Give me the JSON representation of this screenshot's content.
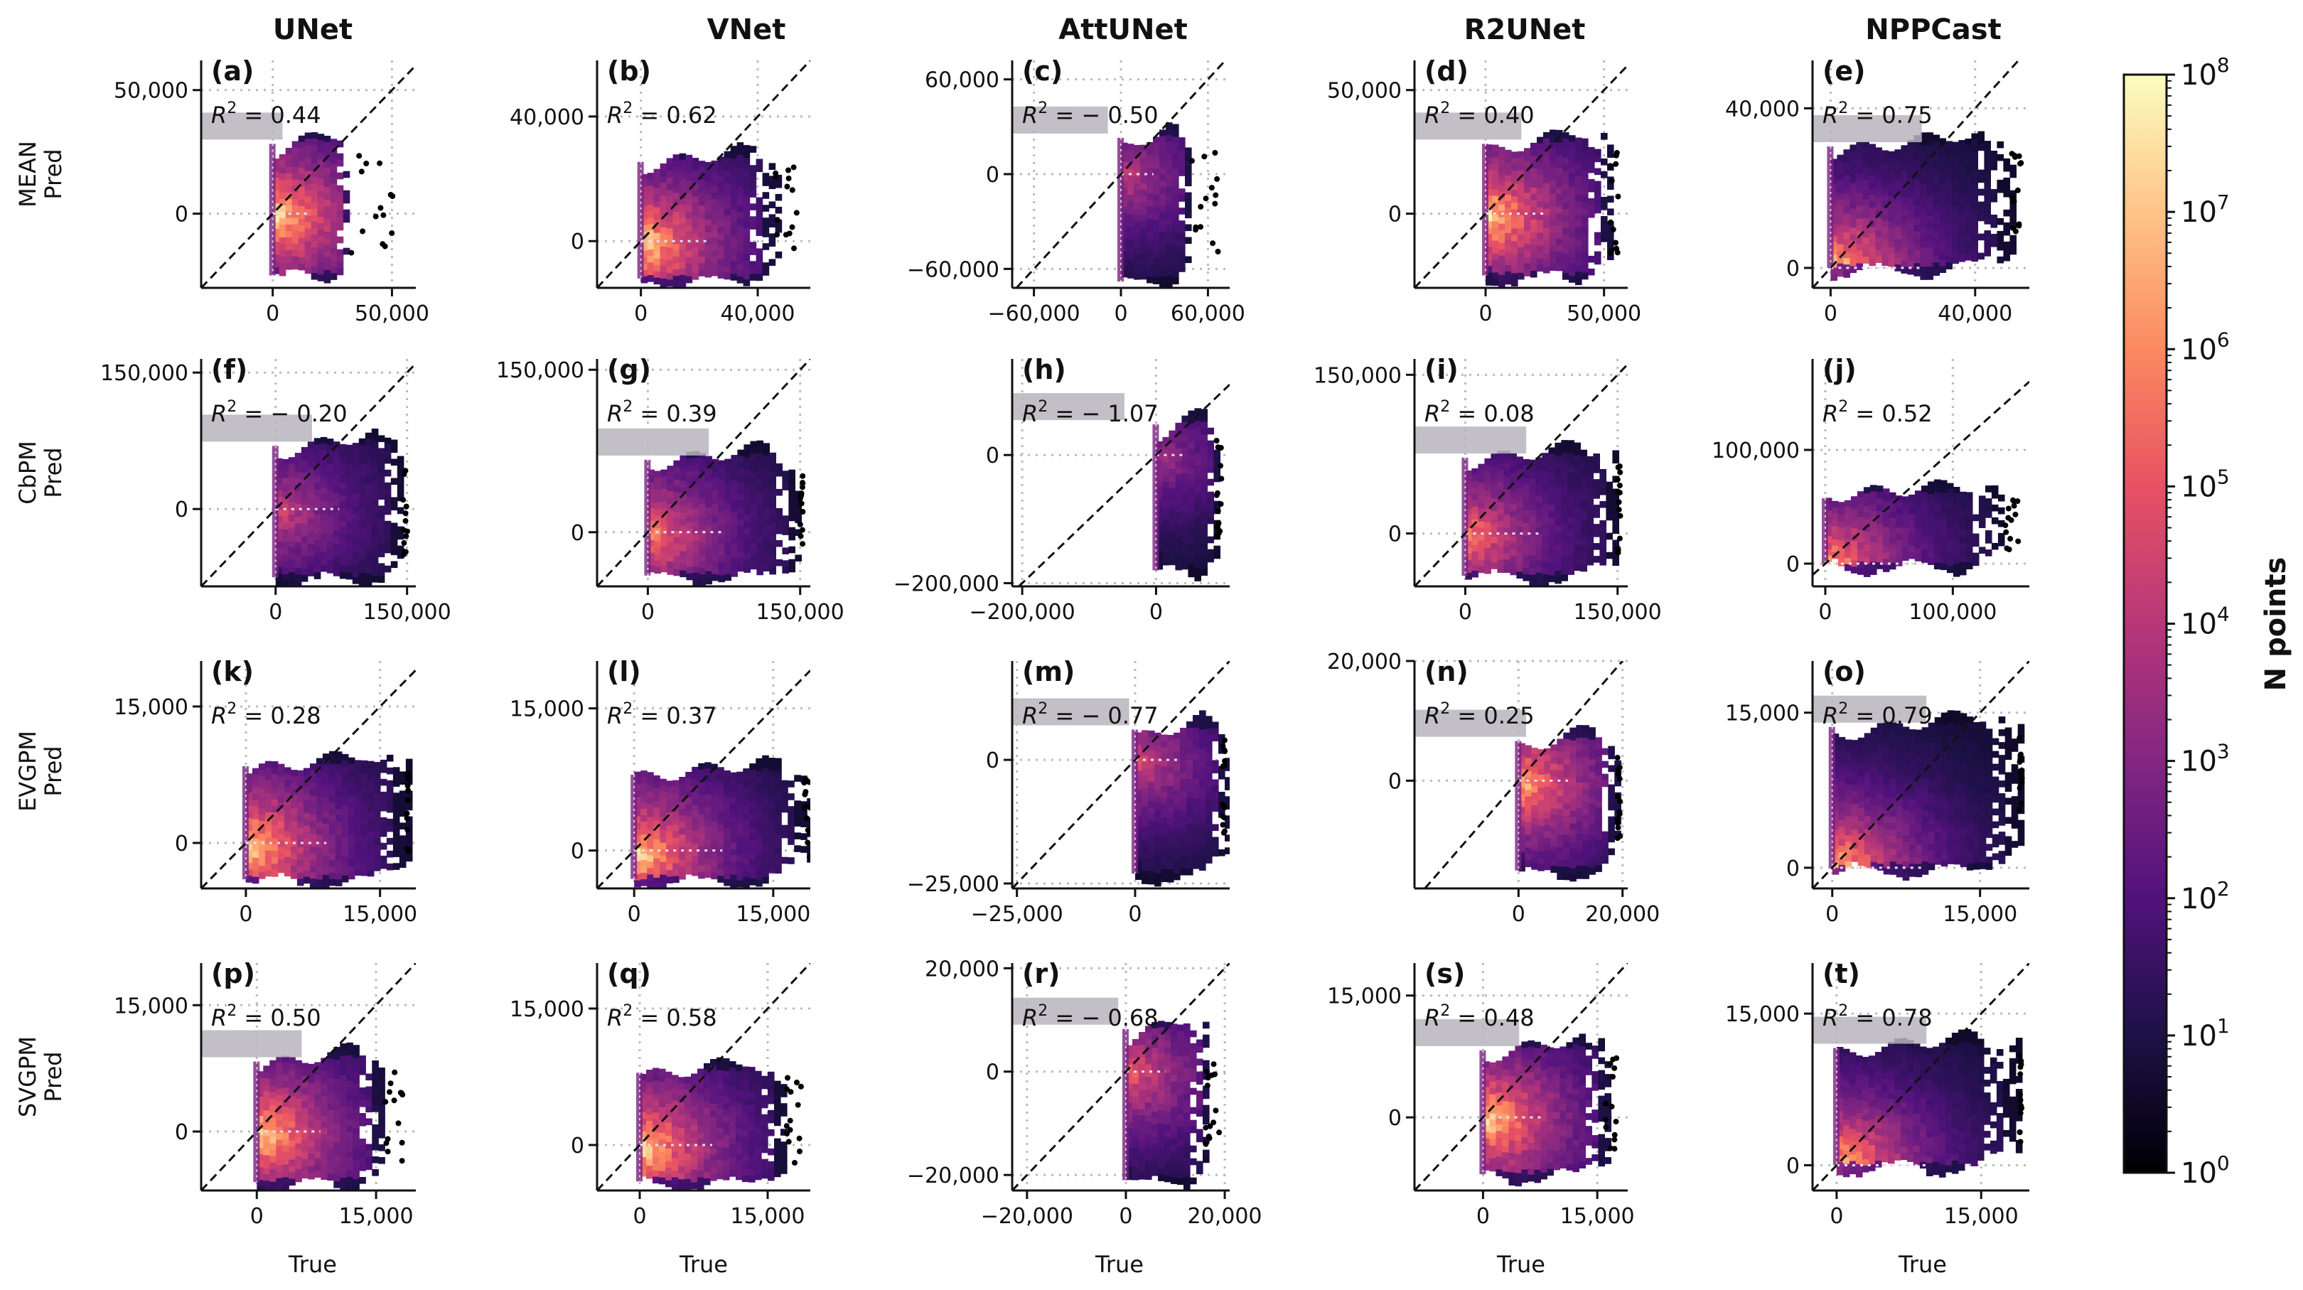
{
  "figure": {
    "columns": [
      "UNet",
      "VNet",
      "AttUNet",
      "R2UNet",
      "NPPCast"
    ],
    "rows": [
      {
        "line1": "MEAN",
        "line2": "Pred"
      },
      {
        "line1": "CbPM",
        "line2": "Pred"
      },
      {
        "line1": "EVGPM",
        "line2": "Pred"
      },
      {
        "line1": "SVGPM",
        "line2": "Pred"
      }
    ],
    "x_axis_title": "True",
    "colorbar": {
      "title": "N points",
      "tick_labels": [
        "10^0",
        "10^1",
        "10^2",
        "10^3",
        "10^4",
        "10^5",
        "10^6",
        "10^7",
        "10^8"
      ],
      "colormap": "magma",
      "stops": [
        "#000004",
        "#1d1147",
        "#51127c",
        "#832681",
        "#b73779",
        "#e75263",
        "#fc8961",
        "#fec488",
        "#fcfdbf"
      ]
    }
  },
  "chart_data": [
    {
      "type": "hexbin",
      "panel": "(a)",
      "model": "UNet",
      "variable": "MEAN",
      "r2": "0.44",
      "xlabel": "True",
      "ylabel": "MEAN Pred",
      "xlim": [
        -30000,
        60000
      ],
      "ylim": [
        -30000,
        62000
      ],
      "xticks": [
        0,
        50000
      ],
      "yticks": [
        0,
        50000
      ],
      "xtick_labels": [
        "0",
        "50,000"
      ],
      "ytick_labels": [
        "0",
        "50,000"
      ],
      "cloud": {
        "x": [
          0,
          32000
        ],
        "y": [
          -25000,
          34000
        ],
        "slope": 0.55,
        "hot": 1.0,
        "satcap": true
      }
    },
    {
      "type": "hexbin",
      "panel": "(b)",
      "model": "VNet",
      "variable": "MEAN",
      "r2": "0.62",
      "xlabel": "True",
      "ylabel": "MEAN Pred",
      "xlim": [
        -15000,
        58000
      ],
      "ylim": [
        -15000,
        58000
      ],
      "xticks": [
        0,
        40000
      ],
      "yticks": [
        0,
        40000
      ],
      "xtick_labels": [
        "0",
        "40,000"
      ],
      "ytick_labels": [
        "0",
        "40,000"
      ],
      "cloud": {
        "x": [
          0,
          46000
        ],
        "y": [
          -12000,
          30000
        ],
        "slope": 0.6,
        "hot": 1.0,
        "satcap": false
      }
    },
    {
      "type": "hexbin",
      "panel": "(c)",
      "model": "AttUNet",
      "variable": "MEAN",
      "r2": "-0.50",
      "xlabel": "True",
      "ylabel": "MEAN Pred",
      "xlim": [
        -75000,
        75000
      ],
      "ylim": [
        -72000,
        72000
      ],
      "xticks": [
        -60000,
        0,
        60000
      ],
      "yticks": [
        -60000,
        0,
        60000
      ],
      "xtick_labels": [
        "−60,000",
        "0",
        "60,000"
      ],
      "ytick_labels": [
        "−60,000",
        "0",
        "60,000"
      ],
      "cloud": {
        "x": [
          0,
          45000
        ],
        "y": [
          -68000,
          32000
        ],
        "slope": 0.25,
        "hot": 0.55,
        "satcap": true
      }
    },
    {
      "type": "hexbin",
      "panel": "(d)",
      "model": "R2UNet",
      "variable": "MEAN",
      "r2": "0.40",
      "xlabel": "True",
      "ylabel": "MEAN Pred",
      "xlim": [
        -30000,
        60000
      ],
      "ylim": [
        -30000,
        62000
      ],
      "xticks": [
        0,
        50000
      ],
      "yticks": [
        0,
        50000
      ],
      "xtick_labels": [
        "0",
        "50,000"
      ],
      "ytick_labels": [
        "0",
        "50,000"
      ],
      "cloud": {
        "x": [
          0,
          52000
        ],
        "y": [
          -25000,
          34000
        ],
        "slope": 0.55,
        "hot": 1.0,
        "satcap": true
      }
    },
    {
      "type": "hexbin",
      "panel": "(e)",
      "model": "NPPCast",
      "variable": "MEAN",
      "r2": "0.75",
      "xlabel": "True",
      "ylabel": "MEAN Pred",
      "xlim": [
        -5000,
        55000
      ],
      "ylim": [
        -5000,
        52000
      ],
      "xticks": [
        0,
        40000
      ],
      "yticks": [
        0,
        40000
      ],
      "xtick_labels": [
        "0",
        "40,000"
      ],
      "ytick_labels": [
        "0",
        "40,000"
      ],
      "cloud": {
        "x": [
          0,
          50000
        ],
        "y": [
          0,
          34000
        ],
        "slope": 0.7,
        "hot": 1.0,
        "satcap": true
      }
    },
    {
      "type": "hexbin",
      "panel": "(f)",
      "model": "UNet",
      "variable": "CbPM",
      "r2": "-0.20",
      "xlabel": "True",
      "ylabel": "CbPM Pred",
      "xlim": [
        -85000,
        160000
      ],
      "ylim": [
        -85000,
        165000
      ],
      "xticks": [
        0,
        150000
      ],
      "yticks": [
        0,
        150000
      ],
      "xtick_labels": [
        "0",
        "150,000"
      ],
      "ytick_labels": [
        "0",
        "150,000"
      ],
      "cloud": {
        "x": [
          0,
          145000
        ],
        "y": [
          -75000,
          85000
        ],
        "slope": 0.5,
        "hot": 0.6,
        "satcap": true
      }
    },
    {
      "type": "hexbin",
      "panel": "(g)",
      "model": "VNet",
      "variable": "CbPM",
      "r2": "0.39",
      "xlabel": "True",
      "ylabel": "CbPM Pred",
      "xlim": [
        -50000,
        160000
      ],
      "ylim": [
        -50000,
        160000
      ],
      "xticks": [
        0,
        150000
      ],
      "yticks": [
        0,
        150000
      ],
      "xtick_labels": [
        "0",
        "150,000"
      ],
      "ytick_labels": [
        "0",
        "150,000"
      ],
      "cloud": {
        "x": [
          0,
          150000
        ],
        "y": [
          -40000,
          80000
        ],
        "slope": 0.5,
        "hot": 0.8,
        "satcap": true
      }
    },
    {
      "type": "hexbin",
      "panel": "(h)",
      "model": "AttUNet",
      "variable": "CbPM",
      "r2": "-1.07",
      "xlabel": "True",
      "ylabel": "CbPM Pred",
      "xlim": [
        -215000,
        110000
      ],
      "ylim": [
        -205000,
        150000
      ],
      "xticks": [
        -200000,
        0
      ],
      "yticks": [
        -200000,
        0
      ],
      "xtick_labels": [
        "−200,000",
        "0"
      ],
      "ytick_labels": [
        "−200,000",
        "0"
      ],
      "cloud": {
        "x": [
          0,
          90000
        ],
        "y": [
          -180000,
          70000
        ],
        "slope": 0.3,
        "hot": 0.45,
        "satcap": true
      }
    },
    {
      "type": "hexbin",
      "panel": "(i)",
      "model": "R2UNet",
      "variable": "CbPM",
      "r2": "0.08",
      "xlabel": "True",
      "ylabel": "CbPM Pred",
      "xlim": [
        -50000,
        160000
      ],
      "ylim": [
        -50000,
        165000
      ],
      "xticks": [
        0,
        150000
      ],
      "yticks": [
        0,
        150000
      ],
      "xtick_labels": [
        "0",
        "150,000"
      ],
      "ytick_labels": [
        "0",
        "150,000"
      ],
      "cloud": {
        "x": [
          0,
          150000
        ],
        "y": [
          -40000,
          85000
        ],
        "slope": 0.5,
        "hot": 0.8,
        "satcap": true
      }
    },
    {
      "type": "hexbin",
      "panel": "(j)",
      "model": "NPPCast",
      "variable": "CbPM",
      "r2": "0.52",
      "xlabel": "True",
      "ylabel": "CbPM Pred",
      "xlim": [
        -10000,
        160000
      ],
      "ylim": [
        -20000,
        180000
      ],
      "xticks": [
        0,
        100000
      ],
      "yticks": [
        0,
        100000
      ],
      "xtick_labels": [
        "0",
        "100,000"
      ],
      "ytick_labels": [
        "0",
        "100,000"
      ],
      "cloud": {
        "x": [
          0,
          140000
        ],
        "y": [
          0,
          70000
        ],
        "slope": 0.5,
        "hot": 0.9,
        "satcap": false
      }
    },
    {
      "type": "hexbin",
      "panel": "(k)",
      "model": "UNet",
      "variable": "EVGPM",
      "r2": "0.28",
      "xlabel": "True",
      "ylabel": "EVGPM Pred",
      "xlim": [
        -5000,
        19000
      ],
      "ylim": [
        -5000,
        20000
      ],
      "xticks": [
        0,
        15000
      ],
      "yticks": [
        0,
        15000
      ],
      "xtick_labels": [
        "0",
        "15,000"
      ],
      "ytick_labels": [
        "0",
        "15,000"
      ],
      "cloud": {
        "x": [
          0,
          18000
        ],
        "y": [
          -4000,
          10000
        ],
        "slope": 0.45,
        "hot": 1.0,
        "satcap": false
      }
    },
    {
      "type": "hexbin",
      "panel": "(l)",
      "model": "VNet",
      "variable": "EVGPM",
      "r2": "0.37",
      "xlabel": "True",
      "ylabel": "EVGPM Pred",
      "xlim": [
        -4000,
        19000
      ],
      "ylim": [
        -4000,
        20000
      ],
      "xticks": [
        0,
        15000
      ],
      "yticks": [
        0,
        15000
      ],
      "xtick_labels": [
        "0",
        "15,000"
      ],
      "ytick_labels": [
        "0",
        "15,000"
      ],
      "cloud": {
        "x": [
          0,
          19000
        ],
        "y": [
          -3000,
          9500
        ],
        "slope": 0.45,
        "hot": 1.0,
        "satcap": false
      }
    },
    {
      "type": "hexbin",
      "panel": "(m)",
      "model": "AttUNet",
      "variable": "EVGPM",
      "r2": "-0.77",
      "xlabel": "True",
      "ylabel": "EVGPM Pred",
      "xlim": [
        -26000,
        20000
      ],
      "ylim": [
        -26000,
        20000
      ],
      "xticks": [
        -25000,
        0
      ],
      "yticks": [
        -25000,
        0
      ],
      "xtick_labels": [
        "−25,000",
        "0"
      ],
      "ytick_labels": [
        "−25,000",
        "0"
      ],
      "cloud": {
        "x": [
          0,
          19000
        ],
        "y": [
          -23000,
          9000
        ],
        "slope": 0.3,
        "hot": 0.6,
        "satcap": true
      }
    },
    {
      "type": "hexbin",
      "panel": "(n)",
      "model": "R2UNet",
      "variable": "EVGPM",
      "r2": "0.25",
      "xlabel": "True",
      "ylabel": "EVGPM Pred",
      "xlim": [
        -20000,
        21000
      ],
      "ylim": [
        -18000,
        20000
      ],
      "xticks": [
        0,
        20000
      ],
      "yticks": [
        0,
        20000
      ],
      "xtick_labels": [
        "0",
        "20,000"
      ],
      "ytick_labels": [
        "0",
        "20,000"
      ],
      "cloud": {
        "x": [
          0,
          19000
        ],
        "y": [
          -15000,
          9000
        ],
        "slope": 0.4,
        "hot": 0.9,
        "satcap": true
      }
    },
    {
      "type": "hexbin",
      "panel": "(o)",
      "model": "NPPCast",
      "variable": "EVGPM",
      "r2": "0.79",
      "xlabel": "True",
      "ylabel": "EVGPM Pred",
      "xlim": [
        -2000,
        20000
      ],
      "ylim": [
        -2000,
        20000
      ],
      "xticks": [
        0,
        15000
      ],
      "yticks": [
        0,
        15000
      ],
      "xtick_labels": [
        "0",
        "15,000"
      ],
      "ytick_labels": [
        "0",
        "15,000"
      ],
      "cloud": {
        "x": [
          0,
          19000
        ],
        "y": [
          0,
          15000
        ],
        "slope": 0.65,
        "hot": 1.0,
        "satcap": true
      }
    },
    {
      "type": "hexbin",
      "panel": "(p)",
      "model": "UNet",
      "variable": "SVGPM",
      "r2": "0.50",
      "xlabel": "True",
      "ylabel": "SVGPM Pred",
      "xlim": [
        -7000,
        20000
      ],
      "ylim": [
        -7000,
        20000
      ],
      "xticks": [
        0,
        15000
      ],
      "yticks": [
        0,
        15000
      ],
      "xtick_labels": [
        "0",
        "15,000"
      ],
      "ytick_labels": [
        "0",
        "15,000"
      ],
      "cloud": {
        "x": [
          0,
          16000
        ],
        "y": [
          -6000,
          10000
        ],
        "slope": 0.55,
        "hot": 1.0,
        "satcap": true
      }
    },
    {
      "type": "hexbin",
      "panel": "(q)",
      "model": "VNet",
      "variable": "SVGPM",
      "r2": "0.58",
      "xlabel": "True",
      "ylabel": "SVGPM Pred",
      "xlim": [
        -5000,
        20000
      ],
      "ylim": [
        -5000,
        20000
      ],
      "xticks": [
        0,
        15000
      ],
      "yticks": [
        0,
        15000
      ],
      "xtick_labels": [
        "0",
        "15,000"
      ],
      "ytick_labels": [
        "0",
        "15,000"
      ],
      "cloud": {
        "x": [
          0,
          17000
        ],
        "y": [
          -4000,
          9500
        ],
        "slope": 0.55,
        "hot": 1.0,
        "satcap": false
      }
    },
    {
      "type": "hexbin",
      "panel": "(r)",
      "model": "AttUNet",
      "variable": "SVGPM",
      "r2": "-0.68",
      "xlabel": "True",
      "ylabel": "SVGPM Pred",
      "xlim": [
        -23000,
        21000
      ],
      "ylim": [
        -23000,
        21000
      ],
      "xticks": [
        -20000,
        0,
        20000
      ],
      "yticks": [
        -20000,
        0,
        20000
      ],
      "xtick_labels": [
        "−20,000",
        "0",
        "20,000"
      ],
      "ytick_labels": [
        "−20,000",
        "0",
        "20,000"
      ],
      "cloud": {
        "x": [
          0,
          16000
        ],
        "y": [
          -21000,
          11000
        ],
        "slope": 0.3,
        "hot": 0.7,
        "satcap": true
      }
    },
    {
      "type": "hexbin",
      "panel": "(s)",
      "model": "R2UNet",
      "variable": "SVGPM",
      "r2": "0.48",
      "xlabel": "True",
      "ylabel": "SVGPM Pred",
      "xlim": [
        -9000,
        19000
      ],
      "ylim": [
        -9000,
        19000
      ],
      "xticks": [
        0,
        15000
      ],
      "yticks": [
        0,
        15000
      ],
      "xtick_labels": [
        "0",
        "15,000"
      ],
      "ytick_labels": [
        "0",
        "15,000"
      ],
      "cloud": {
        "x": [
          0,
          16000
        ],
        "y": [
          -7000,
          10000
        ],
        "slope": 0.55,
        "hot": 1.0,
        "satcap": true
      }
    },
    {
      "type": "hexbin",
      "panel": "(t)",
      "model": "NPPCast",
      "variable": "SVGPM",
      "r2": "0.78",
      "xlabel": "True",
      "ylabel": "SVGPM Pred",
      "xlim": [
        -2500,
        20000
      ],
      "ylim": [
        -2500,
        20000
      ],
      "xticks": [
        0,
        15000
      ],
      "yticks": [
        0,
        15000
      ],
      "xtick_labels": [
        "0",
        "15,000"
      ],
      "ytick_labels": [
        "0",
        "15,000"
      ],
      "cloud": {
        "x": [
          0,
          19000
        ],
        "y": [
          0,
          13000
        ],
        "slope": 0.65,
        "hot": 1.0,
        "satcap": true
      }
    }
  ]
}
